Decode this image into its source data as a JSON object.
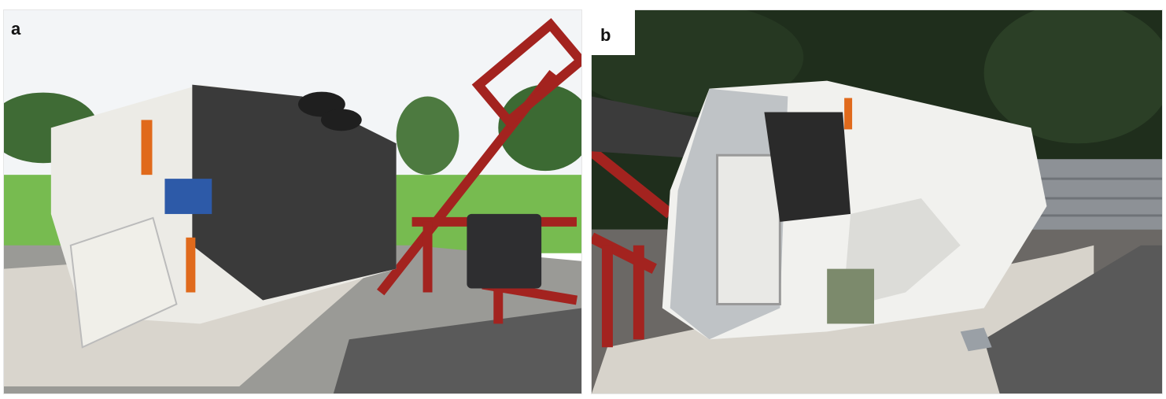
{
  "figure": {
    "panels": [
      {
        "label": "a",
        "description_icon": "overturned-bus-photo"
      },
      {
        "label": "b",
        "description_icon": "overturned-truck-photo"
      }
    ]
  },
  "colors": {
    "sky": "#f4f6f8",
    "grass": "#6fb64a",
    "trees": "#2f5a2a",
    "concrete": "#d8d4cc",
    "asphalt": "#595959",
    "rig_red": "#a3231f",
    "vehicle_white": "#f2f2ef",
    "stripe_orange": "#e06a1c",
    "forest": "#1c2a1a"
  }
}
